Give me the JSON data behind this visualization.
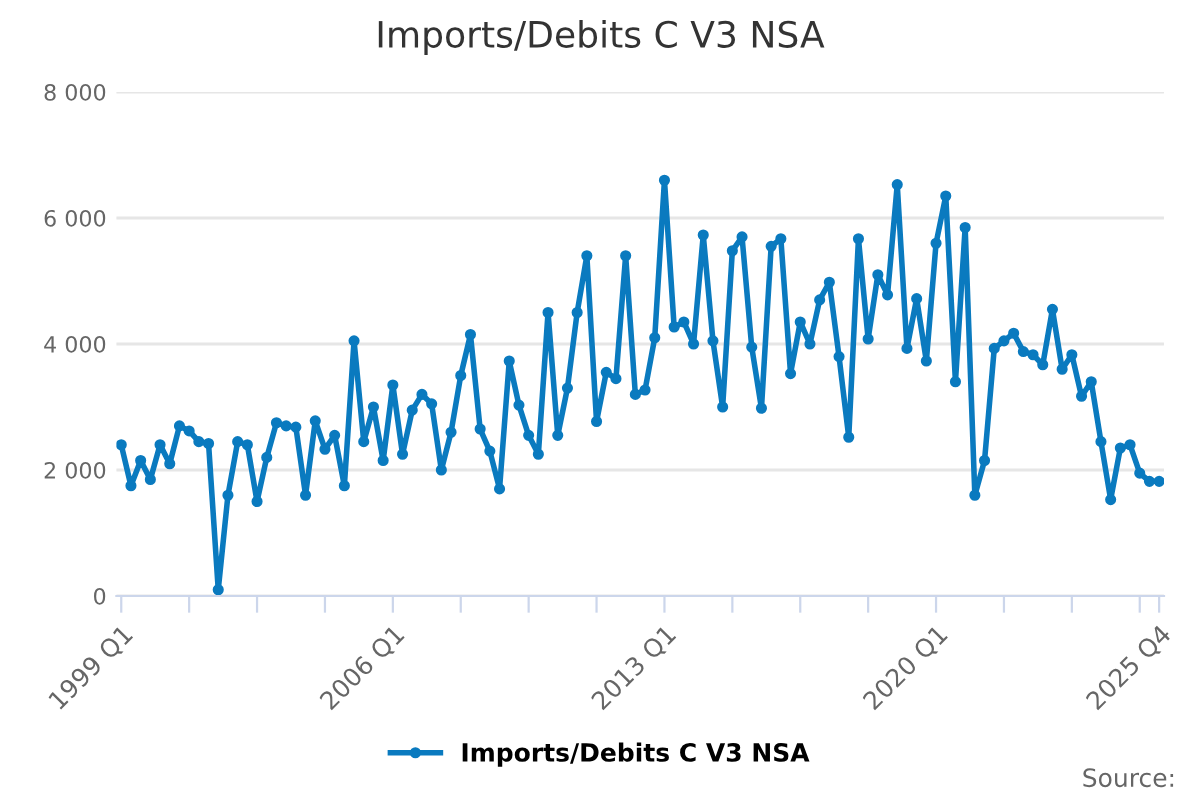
{
  "chart_data": {
    "type": "line",
    "title": "Imports/Debits C V3 NSA",
    "categories": [
      "1999 Q1",
      null,
      null,
      null,
      null,
      null,
      null,
      null,
      null,
      null,
      null,
      null,
      null,
      null,
      null,
      null,
      null,
      null,
      null,
      null,
      null,
      null,
      null,
      null,
      null,
      null,
      null,
      null,
      "2006 Q1",
      null,
      null,
      null,
      null,
      null,
      null,
      null,
      null,
      null,
      null,
      null,
      null,
      null,
      null,
      null,
      null,
      null,
      null,
      null,
      null,
      null,
      null,
      null,
      null,
      null,
      null,
      null,
      "2013 Q1",
      null,
      null,
      null,
      null,
      null,
      null,
      null,
      null,
      null,
      null,
      null,
      null,
      null,
      null,
      null,
      null,
      null,
      null,
      null,
      null,
      null,
      null,
      null,
      null,
      null,
      null,
      null,
      "2020 Q1",
      null,
      null,
      null,
      null,
      null,
      null,
      null,
      null,
      null,
      null,
      null,
      null,
      null,
      null,
      null,
      null,
      null,
      null,
      null,
      null,
      null,
      null,
      "2025 Q4"
    ],
    "series": [
      {
        "name": "Imports/Debits C V3 NSA",
        "color": "#0a7abf",
        "values": [
          2400,
          1750,
          2150,
          1850,
          2400,
          2100,
          2700,
          2620,
          2450,
          2420,
          100,
          1600,
          2450,
          2400,
          1500,
          2200,
          2750,
          2700,
          2680,
          1600,
          2780,
          2330,
          2550,
          1750,
          4050,
          2450,
          3000,
          2150,
          3350,
          2250,
          2950,
          3200,
          3050,
          2000,
          2600,
          3500,
          4150,
          2650,
          2300,
          1700,
          3730,
          3030,
          2550,
          2250,
          4500,
          2550,
          3300,
          4500,
          5400,
          2770,
          3550,
          3450,
          5400,
          3200,
          3270,
          4100,
          6600,
          4270,
          4350,
          4000,
          5730,
          4050,
          3000,
          5480,
          5700,
          3950,
          2980,
          5550,
          5670,
          3530,
          4350,
          4000,
          4700,
          4980,
          3800,
          2520,
          5670,
          4080,
          5100,
          4780,
          6530,
          3930,
          4720,
          3730,
          5600,
          6350,
          3400,
          5850,
          1600,
          2150,
          3930,
          4050,
          4170,
          3880,
          3830,
          3670,
          4550,
          3600,
          3830,
          3170,
          3400,
          2450,
          1530,
          2350,
          2400,
          1950,
          1820,
          1820
        ]
      }
    ],
    "ylim": [
      0,
      8000
    ],
    "yticks": [
      0,
      {
        "value": 2000,
        "label": "2 000"
      },
      {
        "value": 4000,
        "label": "4 000"
      },
      {
        "value": 6000,
        "label": "6 000"
      },
      {
        "value": 8000,
        "label": "8 000"
      }
    ],
    "grid": "y",
    "legend": "bottom",
    "marker": "circle",
    "line_style": "solid",
    "annotations": [
      "Source:"
    ]
  }
}
